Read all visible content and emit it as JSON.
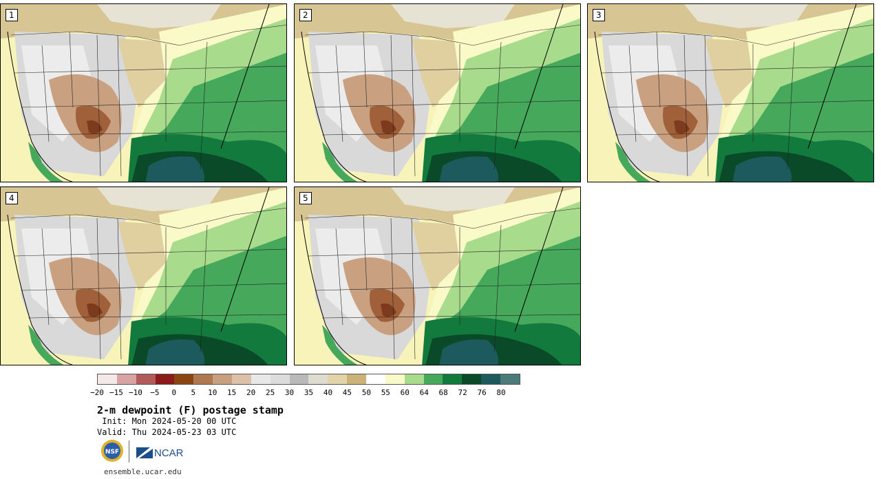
{
  "panels": [
    {
      "id": "1",
      "label": "1"
    },
    {
      "id": "2",
      "label": "2"
    },
    {
      "id": "3",
      "label": "3"
    },
    {
      "id": "4",
      "label": "4"
    },
    {
      "id": "5",
      "label": "5"
    }
  ],
  "colorbar": {
    "colors": [
      "#f5e8e8",
      "#d9a3a3",
      "#b25a5a",
      "#8c1a1a",
      "#8b4513",
      "#b07850",
      "#c8a080",
      "#dcc0a8",
      "#e8e8e8",
      "#dcdcdc",
      "#b9b9b9",
      "#dedbd0",
      "#e3d3a8",
      "#cdb277",
      "#ffffff",
      "#fafac8",
      "#a8dc8c",
      "#46a85a",
      "#127a3c",
      "#0a4a28",
      "#1d5a5e",
      "#4a7a7a"
    ],
    "ticks": [
      "−20",
      "−15",
      "−10",
      "−5",
      "0",
      "5",
      "10",
      "15",
      "20",
      "25",
      "30",
      "35",
      "40",
      "45",
      "50",
      "55",
      "60",
      "64",
      "68",
      "72",
      "76",
      "80"
    ]
  },
  "title": "2-m dewpoint (F) postage stamp",
  "init": " Init: Mon 2024-05-20 00 UTC",
  "valid": "Valid: Thu 2024-05-23 03 UTC",
  "logos": {
    "nsf_text": "NSF",
    "ncar_text": "NCAR"
  },
  "site": "ensemble.ucar.edu"
}
